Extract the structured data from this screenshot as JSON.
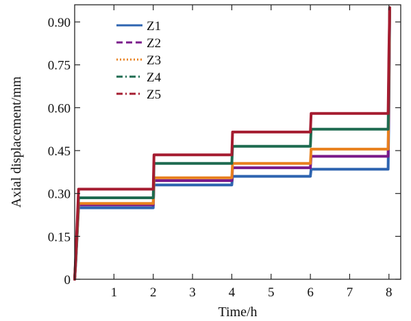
{
  "chart_data": {
    "type": "line",
    "xlabel": "Time/h",
    "ylabel": "Axial displacement/mm",
    "xlim": [
      0,
      8.3
    ],
    "ylim": [
      0,
      0.96
    ],
    "x_ticks": [
      1,
      2,
      3,
      4,
      5,
      6,
      7,
      8
    ],
    "x_tick_labels": [
      "1",
      "2",
      "3",
      "4",
      "5",
      "6",
      "7",
      "8"
    ],
    "y_ticks": [
      0,
      0.15,
      0.3,
      0.45,
      0.6,
      0.75,
      0.9
    ],
    "y_tick_labels": [
      "0",
      "0.15",
      "0.30",
      "0.45",
      "0.60",
      "0.75",
      "0.90"
    ],
    "grid": false,
    "legend_position": "top-left",
    "series": [
      {
        "name": "Z1",
        "color": "#2e64b0",
        "dash": "solid",
        "x": [
          0.0,
          0.03,
          0.08,
          0.1,
          0.15,
          2.0,
          2.02,
          4.0,
          4.02,
          6.0,
          6.02,
          7.98,
          8.0,
          8.02
        ],
        "y": [
          0.0,
          0.06,
          0.2,
          0.25,
          0.25,
          0.25,
          0.33,
          0.33,
          0.36,
          0.36,
          0.385,
          0.385,
          0.6,
          0.95
        ]
      },
      {
        "name": "Z2",
        "color": "#7a1a8a",
        "dash": "dashed",
        "x": [
          0.0,
          0.03,
          0.08,
          0.1,
          0.15,
          2.0,
          2.02,
          4.0,
          4.02,
          6.0,
          6.02,
          7.98,
          8.0,
          8.02
        ],
        "y": [
          0.0,
          0.07,
          0.21,
          0.26,
          0.26,
          0.26,
          0.345,
          0.345,
          0.39,
          0.39,
          0.43,
          0.43,
          0.65,
          0.95
        ]
      },
      {
        "name": "Z3",
        "color": "#e8801e",
        "dash": "dotted",
        "x": [
          0.0,
          0.03,
          0.08,
          0.1,
          0.15,
          2.0,
          2.02,
          4.0,
          4.02,
          6.0,
          6.02,
          7.98,
          8.0,
          8.02
        ],
        "y": [
          0.0,
          0.07,
          0.21,
          0.265,
          0.265,
          0.265,
          0.355,
          0.355,
          0.405,
          0.405,
          0.455,
          0.455,
          0.7,
          0.95
        ]
      },
      {
        "name": "Z4",
        "color": "#1e6b50",
        "dash": "dashdot",
        "x": [
          0.0,
          0.03,
          0.08,
          0.1,
          0.15,
          2.0,
          2.02,
          4.0,
          4.02,
          6.0,
          6.02,
          7.98,
          8.0,
          8.02
        ],
        "y": [
          0.0,
          0.08,
          0.23,
          0.285,
          0.285,
          0.285,
          0.405,
          0.405,
          0.465,
          0.465,
          0.525,
          0.525,
          0.75,
          0.95
        ]
      },
      {
        "name": "Z5",
        "color": "#a51c30",
        "dash": "dashdot",
        "x": [
          0.0,
          0.03,
          0.08,
          0.1,
          0.15,
          2.0,
          2.02,
          4.0,
          4.02,
          6.0,
          6.02,
          7.98,
          8.0,
          8.02
        ],
        "y": [
          0.0,
          0.09,
          0.25,
          0.315,
          0.315,
          0.315,
          0.435,
          0.435,
          0.515,
          0.515,
          0.58,
          0.58,
          0.8,
          0.95
        ]
      }
    ]
  }
}
